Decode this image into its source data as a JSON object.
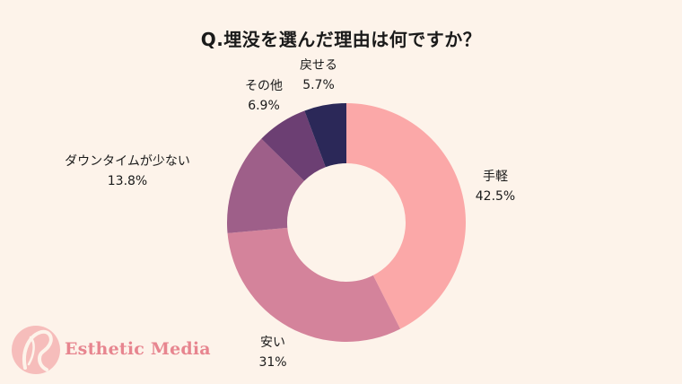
{
  "title": "Q.埋没を選んだ理由は何ですか？",
  "chart_data": {
    "type": "pie",
    "donut": true,
    "title": "Q.埋没を選んだ理由は何ですか？",
    "categories": [
      "手軽",
      "安い",
      "ダウンタイムが少ない",
      "その他",
      "戻せる"
    ],
    "values": [
      42.5,
      31,
      13.8,
      6.9,
      5.7
    ],
    "value_labels": [
      "42.5%",
      "31%",
      "13.8%",
      "6.9%",
      "5.7%"
    ],
    "colors": [
      "#fba8a8",
      "#d4839b",
      "#9e5f89",
      "#6c3f73",
      "#2b2858"
    ],
    "start": "top",
    "direction": "clockwise"
  },
  "logo": {
    "text": "Esthetic Media",
    "color": "#e7858f"
  }
}
